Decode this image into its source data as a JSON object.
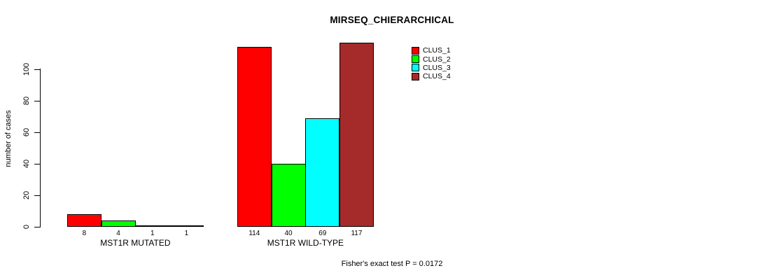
{
  "title": "MIRSEQ_CHIERARCHICAL",
  "footnote": "Fisher's exact test P = 0.0172",
  "chart_data": {
    "type": "bar",
    "title": "MIRSEQ_CHIERARCHICAL",
    "xlabel": "",
    "ylabel": "number of cases",
    "ylim": [
      0,
      117
    ],
    "yticks": [
      0,
      20,
      40,
      60,
      80,
      100
    ],
    "grid": false,
    "legend_position": "top-right",
    "series": [
      {
        "name": "CLUS_1",
        "color": "#FF0000"
      },
      {
        "name": "CLUS_2",
        "color": "#00FF00"
      },
      {
        "name": "CLUS_3",
        "color": "#00FFFF"
      },
      {
        "name": "CLUS_4",
        "color": "#A52A2A"
      }
    ],
    "groups": [
      {
        "label": "MST1R MUTATED",
        "values": [
          8,
          4,
          1,
          1
        ]
      },
      {
        "label": "MST1R WILD-TYPE",
        "values": [
          114,
          40,
          69,
          117
        ]
      }
    ],
    "bar_value_labels_shown": true,
    "annotation": "Fisher's exact test P = 0.0172"
  }
}
